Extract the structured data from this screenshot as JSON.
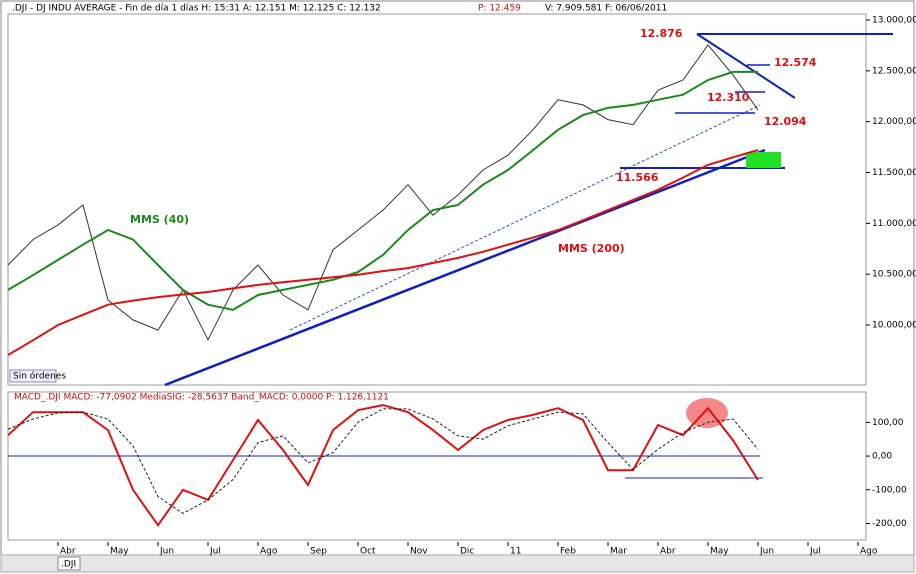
{
  "header": {
    "left": ".DJI - DJ INDU AVERAGE - Fin de día 1 días  H: 15:31  A: 12.151  M: 12.125  C: 12.132",
    "price": "P: 12.459",
    "right": "V: 7.909.581  F: 06/06/2011"
  },
  "footer": {
    "tab": ".DJI",
    "status": "Sin órdenes"
  },
  "chart_data": [
    {
      "type": "line",
      "xlim": [
        0,
        17.16
      ],
      "ylim": [
        9410,
        13059
      ],
      "yticks": [
        {
          "value": 10000,
          "label": "10.000,00"
        },
        {
          "value": 10500,
          "label": "10.500,00"
        },
        {
          "value": 11000,
          "label": "11.000,00"
        },
        {
          "value": 11500,
          "label": "11.500,00"
        },
        {
          "value": 12000,
          "label": "12.000,00"
        },
        {
          "value": 12500,
          "label": "12.500,00"
        },
        {
          "value": 13000,
          "label": "13.000,00"
        }
      ],
      "x": [
        0,
        0.5,
        1,
        1.5,
        2,
        2.5,
        3,
        3.5,
        4,
        4.5,
        5,
        5.5,
        6,
        6.5,
        7,
        7.5,
        8,
        8.5,
        9,
        9.5,
        10,
        10.5,
        11,
        11.5,
        12,
        12.5,
        13,
        13.5,
        14,
        14.5,
        15
      ],
      "series": [
        {
          "color": "#333333",
          "values": [
            10590,
            10840,
            10985,
            11180,
            10245,
            10050,
            9950,
            10345,
            9855,
            10345,
            10590,
            10295,
            10150,
            10740,
            10935,
            11130,
            11380,
            11080,
            11280,
            11525,
            11670,
            11920,
            12215,
            12165,
            12020,
            11970,
            12310,
            12410,
            12755,
            12460,
            12115
          ]
        },
        {
          "name": "MMS (40)",
          "color": "#1a8a1a",
          "values": [
            10345,
            10490,
            10640,
            10790,
            10935,
            10840,
            10590,
            10345,
            10200,
            10150,
            10295,
            10345,
            10395,
            10445,
            10520,
            10690,
            10935,
            11130,
            11180,
            11380,
            11525,
            11720,
            11920,
            12065,
            12135,
            12165,
            12215,
            12265,
            12410,
            12490,
            12490
          ]
        },
        {
          "name": "MMS (200)",
          "color": "#e01010",
          "values": [
            9705,
            9850,
            10000,
            10100,
            10200,
            10240,
            10275,
            10300,
            10325,
            10360,
            10395,
            10420,
            10445,
            10470,
            10495,
            10530,
            10560,
            10610,
            10660,
            10720,
            10790,
            10860,
            10935,
            11030,
            11130,
            11230,
            11330,
            11450,
            11575,
            11650,
            11720
          ]
        }
      ],
      "annotations": [
        "12.876",
        "12.574",
        "12.310",
        "12.094",
        "11.566"
      ]
    },
    {
      "type": "line",
      "title": "MACD_.DJI MACD: -77,0902 MediaSIG: -28,5637 Band_MACD: 0,0000 P: 1.126,1121",
      "xlim": [
        0,
        17.16
      ],
      "ylim": [
        -249,
        190
      ],
      "yticks": [
        {
          "value": 100,
          "label": "100,00"
        },
        {
          "value": 0,
          "label": "0,00"
        },
        {
          "value": -100,
          "label": "-100,00"
        },
        {
          "value": -200,
          "label": "-200,00"
        }
      ],
      "xticks": [
        {
          "value": 1,
          "label": "Abr"
        },
        {
          "value": 2,
          "label": "May"
        },
        {
          "value": 3,
          "label": "Jun"
        },
        {
          "value": 4,
          "label": "Jul"
        },
        {
          "value": 5,
          "label": "Ago"
        },
        {
          "value": 6,
          "label": "Sep"
        },
        {
          "value": 7,
          "label": "Oct"
        },
        {
          "value": 8,
          "label": "Nov"
        },
        {
          "value": 9,
          "label": "Dic"
        },
        {
          "value": 10,
          "label": "11"
        },
        {
          "value": 11,
          "label": "Feb"
        },
        {
          "value": 12,
          "label": "Mar"
        },
        {
          "value": 13,
          "label": "Abr"
        },
        {
          "value": 14,
          "label": "May"
        },
        {
          "value": 15,
          "label": "Jun"
        },
        {
          "value": 16,
          "label": "Jul"
        },
        {
          "value": 17,
          "label": "Ago"
        }
      ],
      "x": [
        0,
        0.5,
        1,
        1.5,
        2,
        2.5,
        3,
        3.5,
        4,
        4.5,
        5,
        5.5,
        6,
        6.5,
        7,
        7.5,
        8,
        8.5,
        9,
        9.5,
        10,
        10.5,
        11,
        11.5,
        12,
        12.5,
        13,
        13.5,
        14,
        14.5,
        15
      ],
      "series": [
        {
          "color": "#e01010",
          "style": "solid",
          "values": [
            62,
            130,
            130,
            130,
            77,
            -100,
            -205,
            -100,
            -130,
            -12,
            107,
            18,
            -86,
            77,
            136,
            151,
            130,
            77,
            18,
            77,
            107,
            122,
            142,
            107,
            -42,
            -42,
            92,
            62,
            142,
            47,
            -71
          ]
        },
        {
          "color": "#222222",
          "style": "dashed",
          "values": [
            80,
            110,
            128,
            130,
            110,
            30,
            -120,
            -170,
            -130,
            -70,
            40,
            60,
            -20,
            10,
            100,
            140,
            140,
            110,
            60,
            50,
            90,
            110,
            130,
            125,
            40,
            -40,
            20,
            70,
            100,
            110,
            20
          ]
        }
      ]
    }
  ]
}
